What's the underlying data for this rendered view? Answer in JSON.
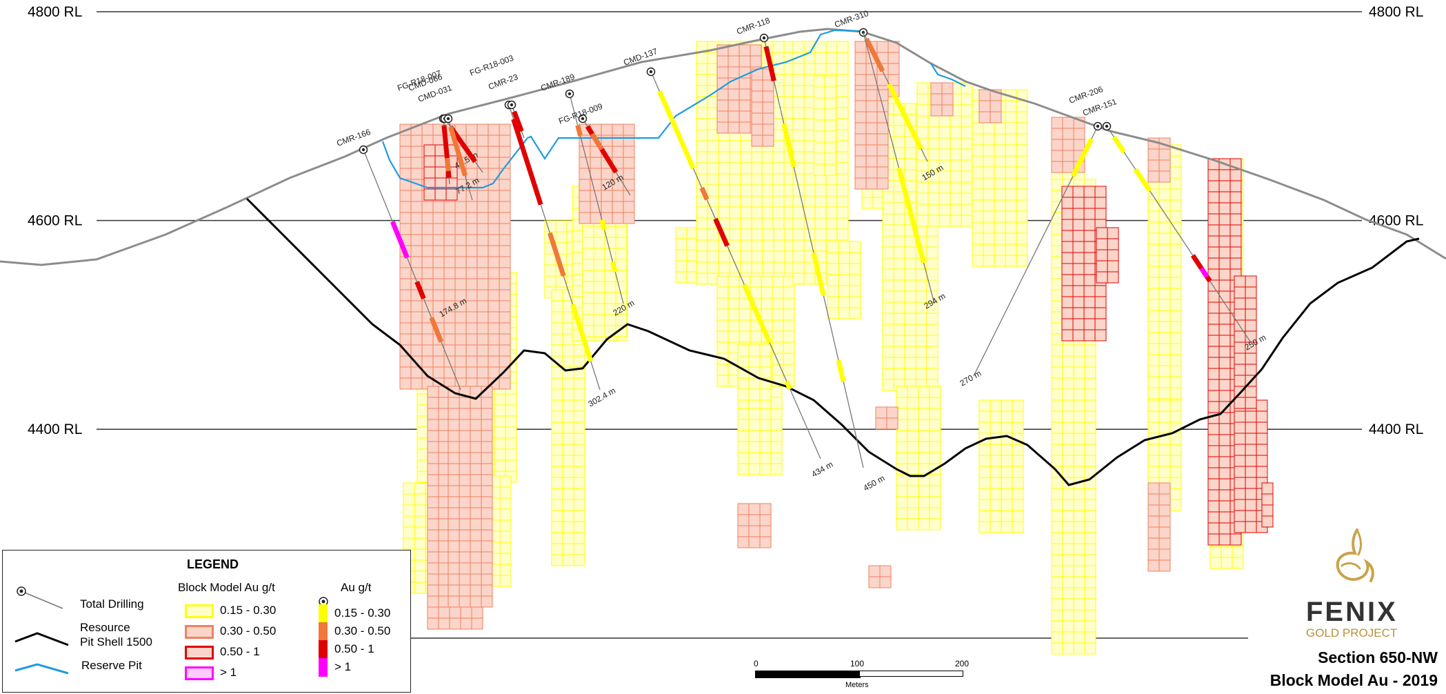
{
  "rl_levels": [
    {
      "label": "4800 RL",
      "elev": 4800
    },
    {
      "label": "4600 RL",
      "elev": 4600
    },
    {
      "label": "4400 RL",
      "elev": 4400
    }
  ],
  "drillholes": [
    {
      "name": "CMR-166",
      "depth_label": "174.8 m"
    },
    {
      "name": "FG-R18-007",
      "depth_label": "48.5 m"
    },
    {
      "name": "CMD-066",
      "depth_label": ""
    },
    {
      "name": "CMD-031",
      "depth_label": "77.2 m"
    },
    {
      "name": "FG-R18-003",
      "depth_label": "302.4 m"
    },
    {
      "name": "CMR-23",
      "depth_label": ""
    },
    {
      "name": "CMR-189",
      "depth_label": "220 m"
    },
    {
      "name": "FG-R18-009",
      "depth_label": "120 m"
    },
    {
      "name": "CMD-137",
      "depth_label": "434 m"
    },
    {
      "name": "CMR-118",
      "depth_label": "450 m"
    },
    {
      "name": "CMR-310",
      "depth_label": "150 m"
    },
    {
      "name": "",
      "depth_label": "294 m"
    },
    {
      "name": "CMR-206",
      "depth_label": "270 m"
    },
    {
      "name": "CMR-151",
      "depth_label": "250 m"
    }
  ],
  "legend": {
    "title": "LEGEND",
    "total_drilling": "Total Drilling",
    "resource_line1": "Resource",
    "resource_line2": "Pit Shell 1500",
    "reserve_pit": "Reserve Pit",
    "block_model_header": "Block Model Au g/t",
    "au_header": "Au g/t",
    "block_classes": [
      {
        "label": "0.15 - 0.30",
        "fill": "#ffffcc",
        "stroke": "#ffff00"
      },
      {
        "label": "0.30 - 0.50",
        "fill": "#fbd5c9",
        "stroke": "#f08060"
      },
      {
        "label": "0.50 - 1",
        "fill": "#fbd5c9",
        "stroke": "#e00000"
      },
      {
        "label": "> 1",
        "fill": "#ffccff",
        "stroke": "#ff00ff"
      }
    ],
    "au_classes": [
      {
        "label": "0.15 - 0.30",
        "color": "#ffff00"
      },
      {
        "label": "0.30 - 0.50",
        "color": "#f07838"
      },
      {
        "label": "0.50 - 1",
        "color": "#e00000"
      },
      {
        "label": "> 1",
        "color": "#ff00ff"
      }
    ]
  },
  "scale": {
    "ticks": [
      "0",
      "100",
      "200"
    ],
    "unit": "Meters"
  },
  "logo": {
    "name": "FENIX",
    "subtitle": "GOLD PROJECT"
  },
  "title": {
    "line1": "Section 650-NW",
    "line2": "Block Model Au - 2019"
  },
  "colors": {
    "topography": "#8c8c8c",
    "resource_pit": "#000000",
    "reserve_pit": "#1e9be0",
    "drilling": "#777777"
  }
}
